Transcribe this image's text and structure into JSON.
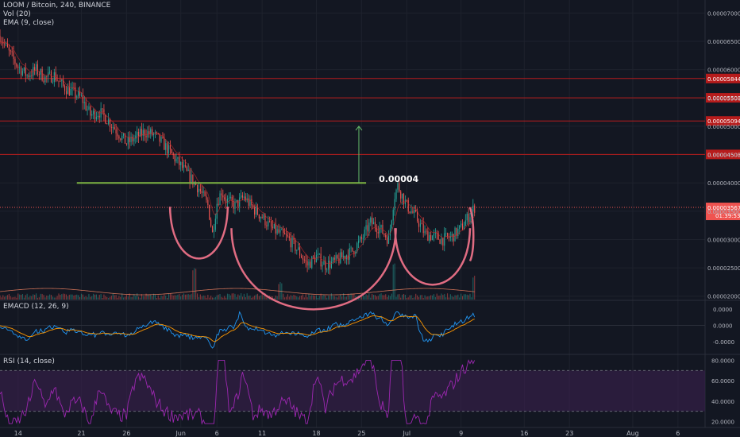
{
  "chart_data": {
    "type": "candlestick",
    "legend": {
      "symbol": "LOOM / Bitcoin, 240, BINANCE",
      "volume": "Vol (20)",
      "ema": "EMA (9, close)",
      "macd": "EMACD (12, 26, 9)",
      "rsi": "RSI (14, close)"
    },
    "price_axis": {
      "ticks": [
        {
          "value": 7e-05,
          "label": "0.00007000"
        },
        {
          "value": 6.5e-05,
          "label": "0.00006500"
        },
        {
          "value": 6e-05,
          "label": "0.00006000"
        },
        {
          "value": 5.5e-05,
          "label": "0.00005500"
        },
        {
          "value": 5e-05,
          "label": "0.00005000"
        },
        {
          "value": 4.5e-05,
          "label": "0.00004500"
        },
        {
          "value": 4e-05,
          "label": "0.00004000"
        },
        {
          "value": 3.5e-05,
          "label": "0.00003500"
        },
        {
          "value": 3e-05,
          "label": "0.00003000"
        },
        {
          "value": 2.5e-05,
          "label": "0.00002500"
        },
        {
          "value": 2e-05,
          "label": "0.00002000"
        }
      ],
      "range": [
        1.94e-05,
        7.23e-05
      ]
    },
    "resistance_levels": [
      {
        "value": 5.844e-05,
        "label": "0.00005844"
      },
      {
        "value": 5.503e-05,
        "label": "0.00005503"
      },
      {
        "value": 5.094e-05,
        "label": "0.00005094"
      },
      {
        "value": 4.503e-05,
        "label": "0.00004503"
      }
    ],
    "current_price": {
      "value": 3.567e-05,
      "label": "0.00003567",
      "countdown": "01:39:53"
    },
    "neckline": {
      "value": 4e-05,
      "label": "0.00004",
      "from_day": 8.5,
      "to_day": 40.5
    },
    "target_arrow": {
      "day": 39.7,
      "from": 4e-05,
      "to": 5e-05
    },
    "x_axis": {
      "range_days": [
        0,
        55
      ],
      "ticks": [
        {
          "day": 2,
          "label": "14"
        },
        {
          "day": 9,
          "label": "21"
        },
        {
          "day": 14,
          "label": "26"
        },
        {
          "day": 20,
          "label": "Jun"
        },
        {
          "day": 24,
          "label": "6"
        },
        {
          "day": 29,
          "label": "11"
        },
        {
          "day": 35,
          "label": "18"
        },
        {
          "day": 40,
          "label": "25"
        },
        {
          "day": 45,
          "label": "Jul"
        },
        {
          "day": 51,
          "label": "9"
        },
        {
          "day": 58,
          "label": "16"
        },
        {
          "day": 63,
          "label": "23"
        },
        {
          "day": 70,
          "label": "Aug"
        },
        {
          "day": 75,
          "label": "6"
        }
      ]
    },
    "price_path": [
      [
        0,
        6.6e-05
      ],
      [
        1.0,
        6.3e-05
      ],
      [
        2.0,
        6.05e-05
      ],
      [
        3.0,
        5.9e-05
      ],
      [
        4.0,
        6e-05
      ],
      [
        5.0,
        5.85e-05
      ],
      [
        6.0,
        5.9e-05
      ],
      [
        7.0,
        5.7e-05
      ],
      [
        8.0,
        5.6e-05
      ],
      [
        9.0,
        5.5e-05
      ],
      [
        10.0,
        5.2e-05
      ],
      [
        11.0,
        5.25e-05
      ],
      [
        12.0,
        5.1e-05
      ],
      [
        13.0,
        4.9e-05
      ],
      [
        14.0,
        4.7e-05
      ],
      [
        15.0,
        4.8e-05
      ],
      [
        16.0,
        4.9e-05
      ],
      [
        17.0,
        4.85e-05
      ],
      [
        18.0,
        4.7e-05
      ],
      [
        19.0,
        4.5e-05
      ],
      [
        20.0,
        4.3e-05
      ],
      [
        21.0,
        4.1e-05
      ],
      [
        22.0,
        3.9e-05
      ],
      [
        23.0,
        3.6e-05
      ],
      [
        23.5,
        3.1e-05
      ],
      [
        24.0,
        3.65e-05
      ],
      [
        24.5,
        3.85e-05
      ],
      [
        25.0,
        3.7e-05
      ],
      [
        26.0,
        3.6e-05
      ],
      [
        27.0,
        3.75e-05
      ],
      [
        28.0,
        3.55e-05
      ],
      [
        29.0,
        3.4e-05
      ],
      [
        30.0,
        3.2e-05
      ],
      [
        31.0,
        3.1e-05
      ],
      [
        32.0,
        3e-05
      ],
      [
        33.0,
        2.8e-05
      ],
      [
        34.0,
        2.55e-05
      ],
      [
        35.0,
        2.7e-05
      ],
      [
        36.0,
        2.55e-05
      ],
      [
        37.0,
        2.6e-05
      ],
      [
        38.0,
        2.7e-05
      ],
      [
        39.0,
        2.8e-05
      ],
      [
        40.0,
        3e-05
      ],
      [
        41.0,
        3.3e-05
      ],
      [
        42.0,
        3.2e-05
      ],
      [
        43.0,
        3e-05
      ],
      [
        43.6,
        3.75e-05
      ],
      [
        44.0,
        3.95e-05
      ],
      [
        45.0,
        3.6e-05
      ],
      [
        46.0,
        3.4e-05
      ],
      [
        47.0,
        3.1e-05
      ],
      [
        48.0,
        3.05e-05
      ],
      [
        49.0,
        3e-05
      ],
      [
        50.0,
        3.05e-05
      ],
      [
        51.0,
        3.2e-05
      ],
      [
        52.0,
        3.45e-05
      ],
      [
        52.5,
        3.57e-05
      ]
    ],
    "volume_spikes": [
      [
        21.5,
        0.9
      ],
      [
        31.0,
        0.4
      ],
      [
        43.6,
        1.0
      ],
      [
        52.5,
        0.6
      ]
    ],
    "macd_axis": {
      "ticks": [
        {
          "value": 2e-06,
          "label": "0.0000"
        },
        {
          "value": 0,
          "label": "0.0000"
        },
        {
          "value": -2e-06,
          "label": "-0.0000"
        }
      ]
    },
    "rsi_axis": {
      "ticks": [
        {
          "value": 80,
          "label": "80.0000"
        },
        {
          "value": 60,
          "label": "60.0000"
        },
        {
          "value": 40,
          "label": "40.0000"
        },
        {
          "value": 20,
          "label": "20.0000"
        }
      ],
      "band": [
        30,
        70
      ]
    }
  },
  "colors": {
    "background": "#131722",
    "up": "#26a69a",
    "down": "#ef5350",
    "resistance": "#b71c1c",
    "neckline": "#7cb342",
    "arrow": "#66bb6a",
    "cup": "#e06c82",
    "macd": "#2196f3",
    "signal": "#ff9800",
    "rsi": "#9c27b0",
    "rsi_band": "#3b1f4f",
    "ema": "#c62828",
    "volume_ma": "#ff8a65"
  }
}
